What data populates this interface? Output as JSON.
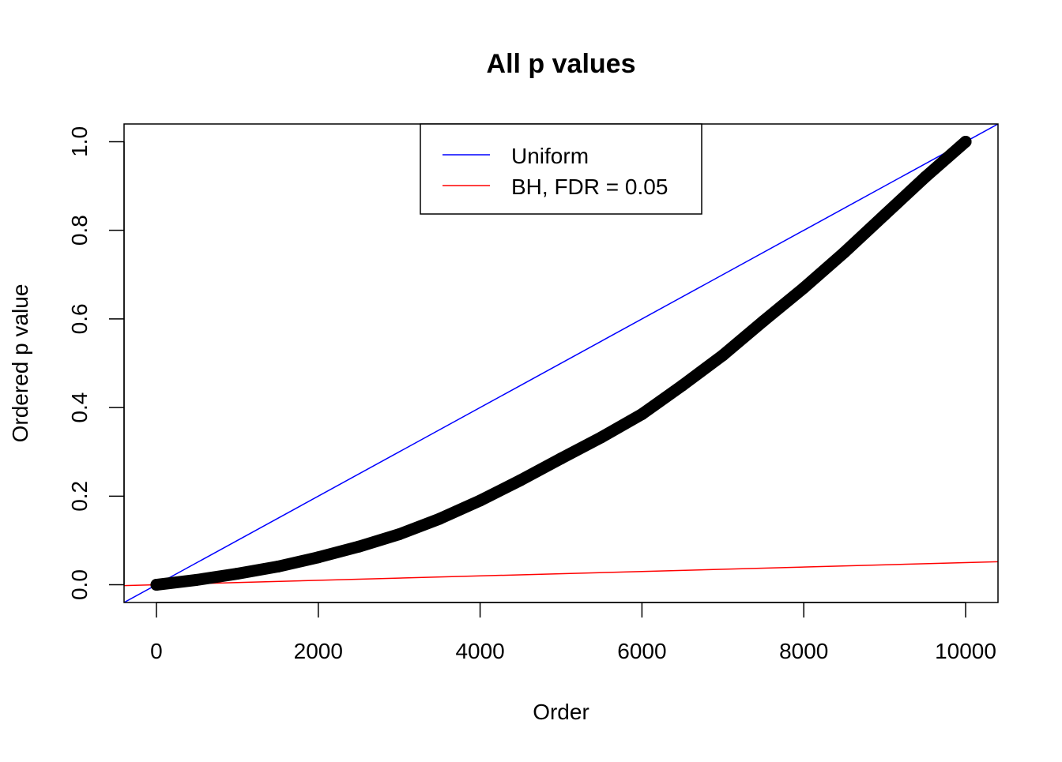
{
  "chart_data": {
    "type": "scatter",
    "title": "All p values",
    "xlabel": "Order",
    "ylabel": "Ordered p value",
    "xlim": [
      -400,
      10400
    ],
    "ylim": [
      -0.04,
      1.04
    ],
    "x_ticks": [
      0,
      2000,
      4000,
      6000,
      8000,
      10000
    ],
    "x_tick_labels": [
      "0",
      "2000",
      "4000",
      "6000",
      "8000",
      "10000"
    ],
    "y_ticks": [
      0,
      0.2,
      0.4,
      0.6,
      0.8,
      1.0
    ],
    "y_tick_labels": [
      "0.0",
      "0.2",
      "0.4",
      "0.6",
      "0.8",
      "1.0"
    ],
    "grid": false,
    "points": {
      "color": "#000000",
      "x": [
        0,
        500,
        1000,
        1500,
        2000,
        2500,
        3000,
        3500,
        4000,
        4500,
        5000,
        5500,
        6000,
        6500,
        7000,
        7500,
        8000,
        8500,
        9000,
        9500,
        10000
      ],
      "y": [
        0,
        0.011,
        0.025,
        0.041,
        0.062,
        0.086,
        0.114,
        0.149,
        0.19,
        0.236,
        0.285,
        0.333,
        0.385,
        0.45,
        0.518,
        0.595,
        0.67,
        0.75,
        0.835,
        0.92,
        1.0
      ]
    },
    "lines": [
      {
        "name": "Uniform",
        "color": "#0000ff",
        "intercept": 0,
        "slope": 0.0001
      },
      {
        "name": "BH, FDR = 0.05",
        "color": "#ff0000",
        "intercept": 0,
        "slope": 5e-06
      }
    ],
    "legend": {
      "placement": "top",
      "entries": [
        "Uniform",
        "BH, FDR = 0.05"
      ]
    }
  }
}
